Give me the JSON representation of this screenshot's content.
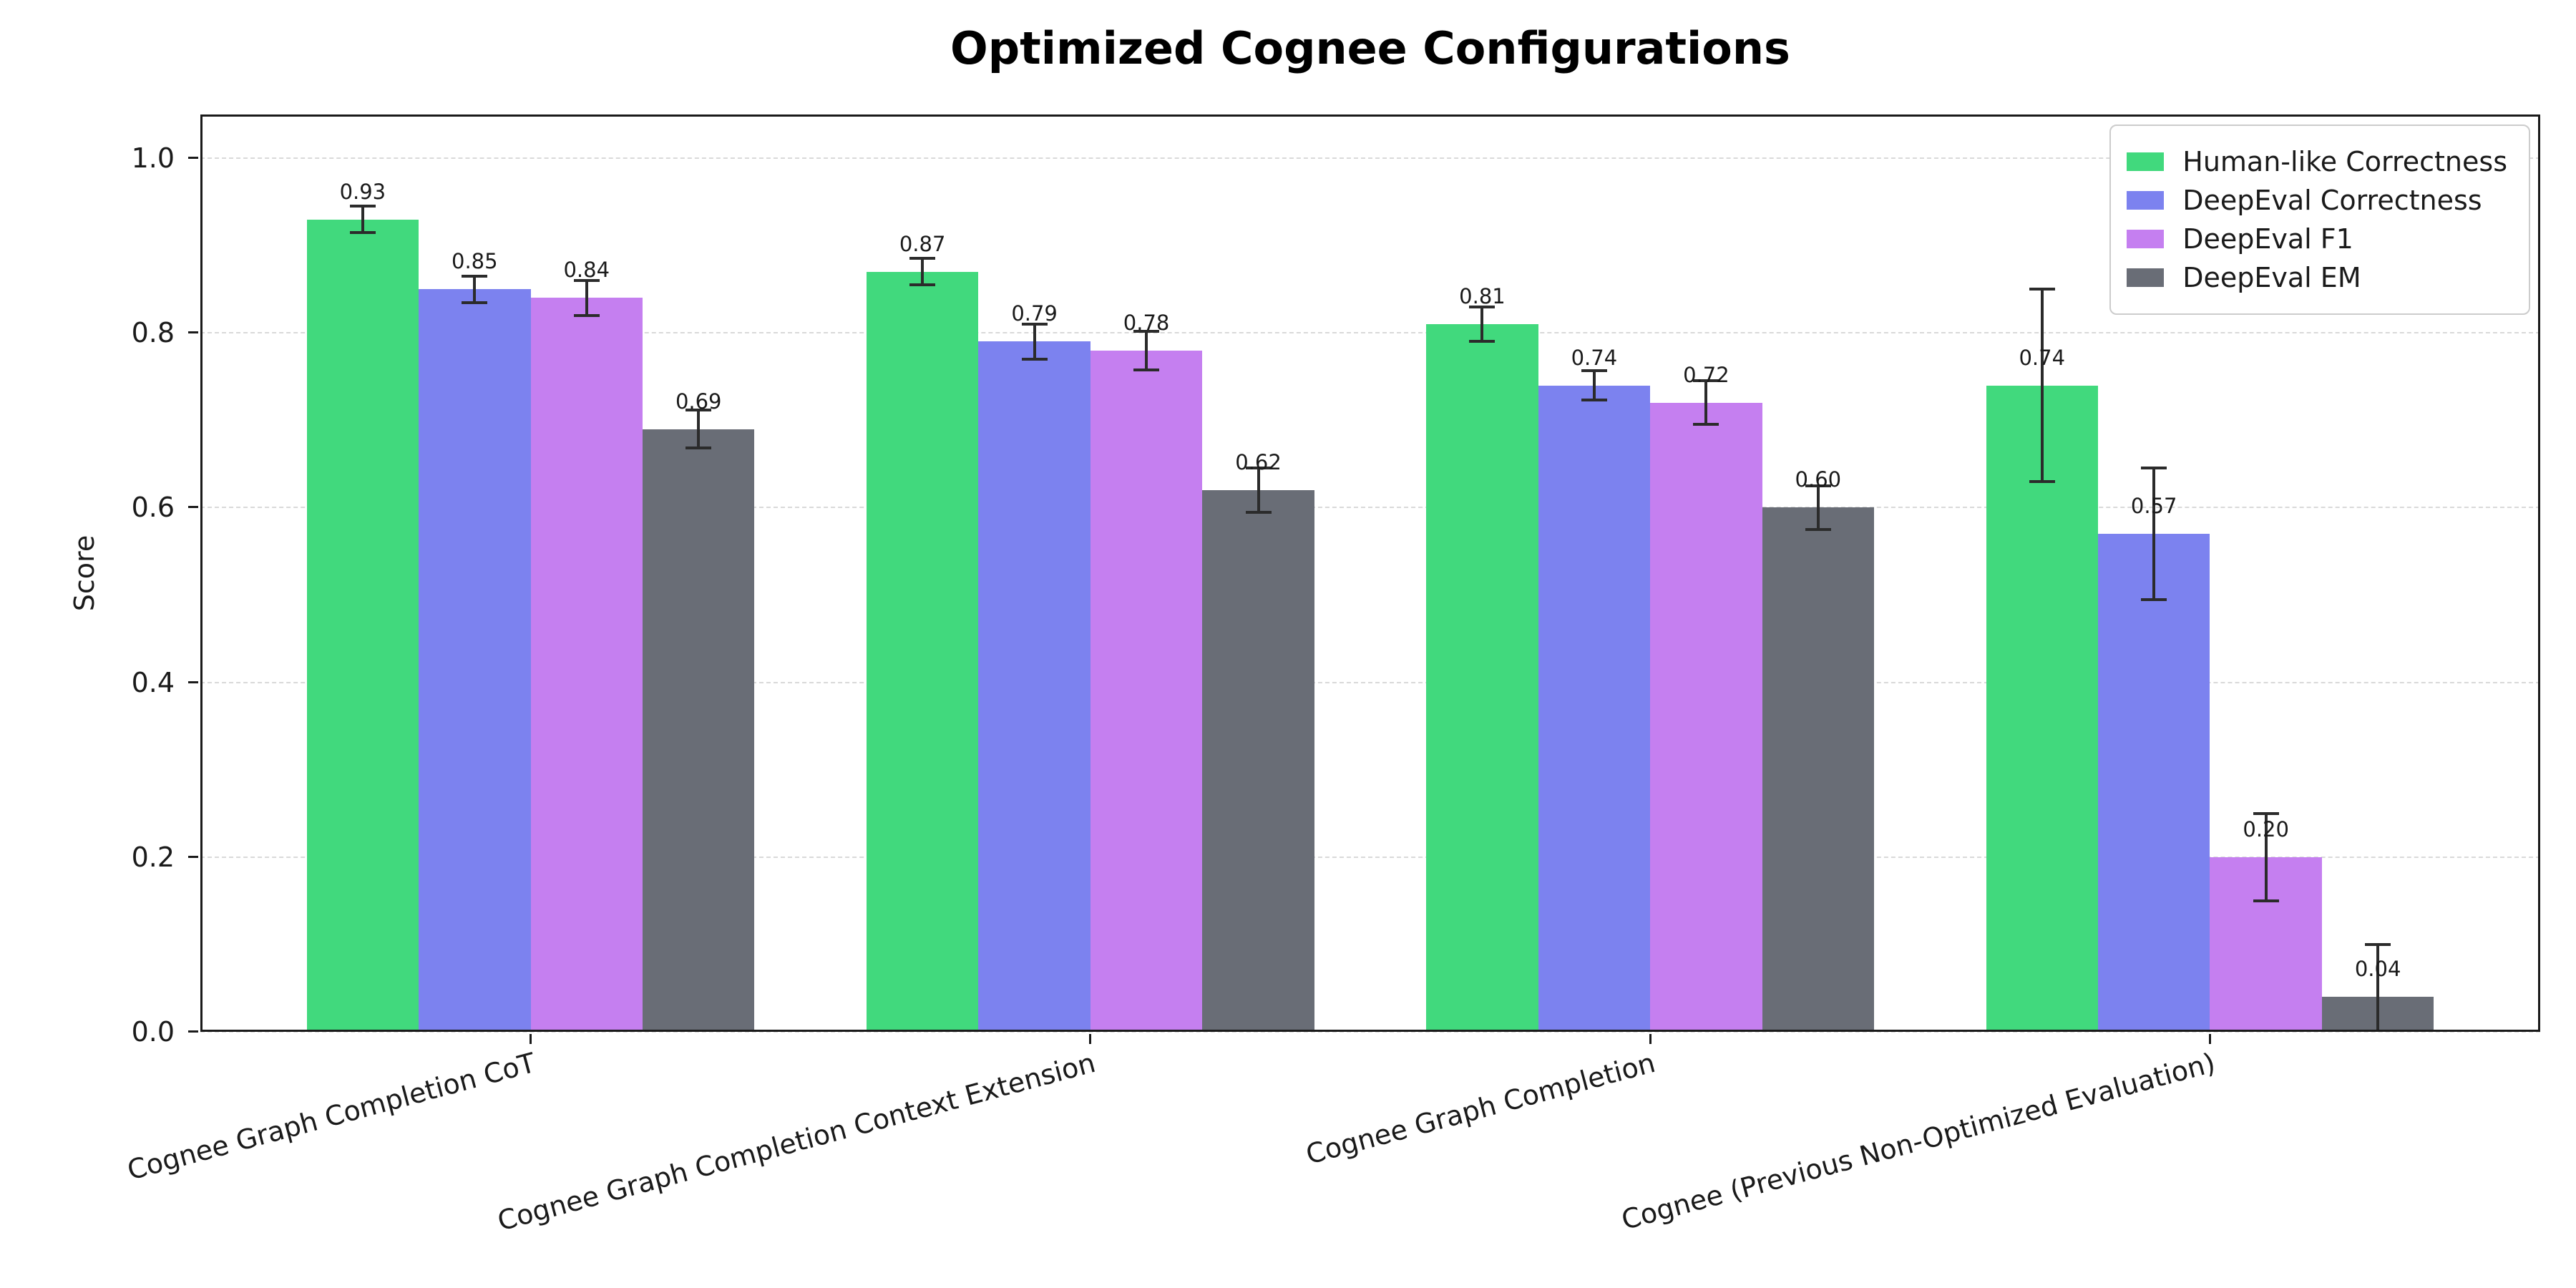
{
  "chart_data": {
    "type": "bar",
    "title": "Optimized Cognee Configurations",
    "xlabel": "",
    "ylabel": "Score",
    "ylim": [
      0,
      1.05
    ],
    "xlim": [
      -0.59,
      3.59
    ],
    "bar_width": 0.2,
    "yticks": [
      0.0,
      0.2,
      0.4,
      0.6,
      0.8,
      1.0
    ],
    "grid": "horizontal-dashed",
    "legend_position": "upper-right",
    "error_bars": true,
    "categories": [
      "Cognee Graph Completion CoT",
      "Cognee Graph Completion Context Extension",
      "Cognee Graph Completion",
      "Cognee (Previous Non-Optimized Evaluation)"
    ],
    "series": [
      {
        "name": "Human-like Correctness",
        "color": "#41d97d",
        "values": [
          0.93,
          0.87,
          0.81,
          0.74
        ],
        "errors": [
          0.015,
          0.015,
          0.02,
          0.11
        ]
      },
      {
        "name": "DeepEval Correctness",
        "color": "#7c82ef",
        "values": [
          0.85,
          0.79,
          0.74,
          0.57
        ],
        "errors": [
          0.015,
          0.02,
          0.017,
          0.075
        ]
      },
      {
        "name": "DeepEval F1",
        "color": "#c57ff0",
        "values": [
          0.84,
          0.78,
          0.72,
          0.2
        ],
        "errors": [
          0.02,
          0.022,
          0.025,
          0.05
        ]
      },
      {
        "name": "DeepEval EM",
        "color": "#696d76",
        "values": [
          0.69,
          0.62,
          0.6,
          0.04
        ],
        "errors": [
          0.022,
          0.025,
          0.025,
          0.06
        ]
      }
    ],
    "colors": {
      "axis": "#1a1a1a",
      "grid": "#d9d9d9",
      "error_bar": "#2b2b2b",
      "legend_border": "#cccccc",
      "background": "#ffffff"
    }
  }
}
